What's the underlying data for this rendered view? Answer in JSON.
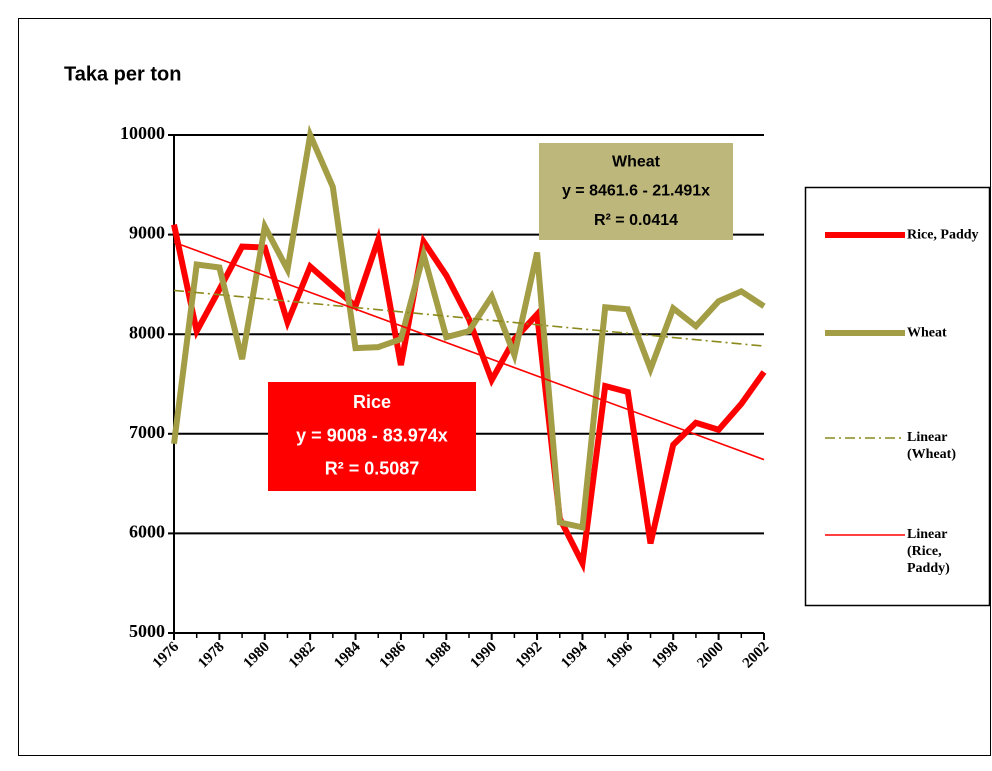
{
  "chart_data": {
    "type": "line",
    "title": "Taka per ton",
    "x": [
      1976,
      1977,
      1978,
      1979,
      1980,
      1981,
      1982,
      1983,
      1984,
      1985,
      1986,
      1987,
      1988,
      1989,
      1990,
      1991,
      1992,
      1993,
      1994,
      1995,
      1996,
      1997,
      1998,
      1999,
      2000,
      2001,
      2002
    ],
    "xlim": [
      1976,
      2002
    ],
    "xticks": [
      1976,
      1978,
      1980,
      1982,
      1984,
      1986,
      1988,
      1990,
      1992,
      1994,
      1996,
      1998,
      2000,
      2002
    ],
    "ylim": [
      5000,
      10000
    ],
    "yticks": [
      5000,
      6000,
      7000,
      8000,
      9000,
      10000
    ],
    "grid": true,
    "legend": "right",
    "series": [
      {
        "name": "Rice, Paddy",
        "color": "#ff0000",
        "values": [
          9100,
          8030,
          8450,
          8880,
          8870,
          8120,
          8680,
          8480,
          8280,
          8950,
          7690,
          8930,
          8590,
          8150,
          7540,
          7950,
          8200,
          6150,
          5700,
          7480,
          7420,
          5900,
          6890,
          7110,
          7040,
          7300,
          7620
        ]
      },
      {
        "name": "Wheat",
        "color": "#a39d45",
        "values": [
          6900,
          8700,
          8670,
          7750,
          9080,
          8650,
          10000,
          9480,
          7860,
          7870,
          7950,
          8800,
          7970,
          8030,
          8380,
          7790,
          8820,
          6110,
          6060,
          8270,
          8250,
          7650,
          8260,
          8080,
          8330,
          8430,
          8280
        ]
      },
      {
        "name": "Linear (Wheat)",
        "color": "#8c8a1c",
        "dash": "10 4 2 4",
        "x": [
          1976,
          2002
        ],
        "values": [
          8440,
          7881
        ]
      },
      {
        "name": "Linear (Rice, Paddy)",
        "color": "#ff0000",
        "x": [
          1976,
          2002
        ],
        "values": [
          8924,
          6741
        ]
      }
    ],
    "annotations": [
      {
        "lines": [
          "Wheat",
          "y = 8461.6 - 21.491x",
          "R² = 0.0414"
        ],
        "color": "#bdb77c",
        "text_color": "#000000"
      },
      {
        "lines": [
          "Rice",
          "y = 9008 - 83.974x",
          "R² = 0.5087"
        ],
        "color": "#ff0000",
        "text_color": "#ffffff"
      }
    ]
  }
}
